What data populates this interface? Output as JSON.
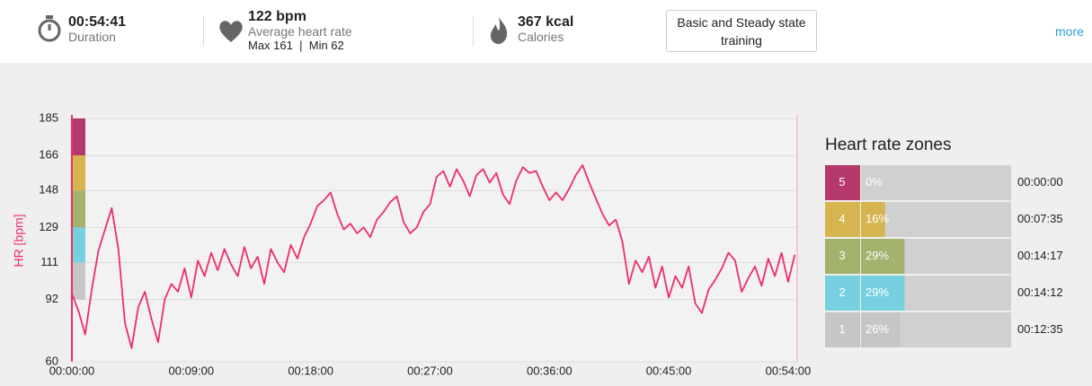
{
  "header": {
    "stats": [
      {
        "value": "00:54:41",
        "label": "Duration"
      },
      {
        "value": "122 bpm",
        "label": "Average heart rate",
        "max": "Max 161",
        "separator": "|",
        "min": "Min 62"
      },
      {
        "value": "367 kcal",
        "label": "Calories"
      }
    ],
    "button": "Basic and Steady state training",
    "more": "more"
  },
  "chart_data": {
    "type": "line",
    "y_label": "HR [bpm]",
    "color": "#ec2f66",
    "x": [
      0,
      30,
      60,
      90,
      120,
      150,
      180,
      210,
      240,
      270,
      300,
      330,
      360,
      390,
      420,
      450,
      480,
      510,
      540,
      570,
      600,
      630,
      660,
      690,
      720,
      750,
      780,
      810,
      840,
      870,
      900,
      930,
      960,
      990,
      1020,
      1050,
      1080,
      1110,
      1140,
      1170,
      1200,
      1230,
      1260,
      1290,
      1320,
      1350,
      1380,
      1410,
      1440,
      1470,
      1500,
      1530,
      1560,
      1590,
      1620,
      1650,
      1680,
      1710,
      1740,
      1770,
      1800,
      1830,
      1860,
      1890,
      1920,
      1950,
      1980,
      2010,
      2040,
      2070,
      2100,
      2130,
      2160,
      2190,
      2220,
      2250,
      2280,
      2310,
      2340,
      2370,
      2400,
      2430,
      2460,
      2490,
      2520,
      2550,
      2580,
      2610,
      2640,
      2670,
      2700,
      2730,
      2760,
      2790,
      2820,
      2850,
      2880,
      2910,
      2940,
      2970,
      3000,
      3030,
      3060,
      3090,
      3120,
      3150,
      3180,
      3210,
      3240,
      3270
    ],
    "values": [
      95,
      86,
      74,
      97,
      117,
      128,
      139,
      118,
      80,
      67,
      88,
      96,
      82,
      70,
      92,
      100,
      96,
      108,
      93,
      112,
      104,
      116,
      107,
      118,
      110,
      104,
      119,
      108,
      114,
      100,
      118,
      111,
      106,
      120,
      113,
      124,
      131,
      140,
      143,
      147,
      136,
      128,
      131,
      126,
      129,
      124,
      133,
      137,
      142,
      145,
      132,
      126,
      129,
      137,
      141,
      155,
      158,
      150,
      159,
      153,
      145,
      156,
      159,
      152,
      157,
      146,
      141,
      153,
      160,
      157,
      158,
      150,
      143,
      147,
      143,
      149,
      156,
      161,
      152,
      144,
      136,
      130,
      133,
      122,
      100,
      112,
      106,
      114,
      98,
      109,
      93,
      104,
      98,
      109,
      90,
      85,
      97,
      102,
      108,
      116,
      112,
      96,
      103,
      109,
      99,
      113,
      104,
      116,
      101,
      115
    ],
    "xlim": [
      0,
      3281
    ],
    "xticks": [
      {
        "value": 0,
        "label": "00:00:00"
      },
      {
        "value": 540,
        "label": "00:09:00"
      },
      {
        "value": 1080,
        "label": "00:18:00"
      },
      {
        "value": 1620,
        "label": "00:27:00"
      },
      {
        "value": 2160,
        "label": "00:36:00"
      },
      {
        "value": 2700,
        "label": "00:45:00"
      },
      {
        "value": 3240,
        "label": "00:54:00"
      }
    ],
    "ylim": [
      60,
      185
    ],
    "yticks": [
      60,
      92,
      111,
      129,
      148,
      166,
      185
    ],
    "grid": true,
    "zone_bands": [
      {
        "from": 166,
        "to": 185,
        "color": "#b4386a"
      },
      {
        "from": 148,
        "to": 166,
        "color": "#d6b550"
      },
      {
        "from": 129,
        "to": 148,
        "color": "#a3b26c"
      },
      {
        "from": 111,
        "to": 129,
        "color": "#76d0df"
      },
      {
        "from": 92,
        "to": 111,
        "color": "#c6c6c6"
      }
    ]
  },
  "zones_panel": {
    "title": "Heart rate zones",
    "rows": [
      {
        "zone": "5",
        "percent": 0,
        "percent_label": "0%",
        "time": "00:00:00",
        "color": "#b4386a"
      },
      {
        "zone": "4",
        "percent": 16,
        "percent_label": "16%",
        "time": "00:07:35",
        "color": "#d6b550"
      },
      {
        "zone": "3",
        "percent": 29,
        "percent_label": "29%",
        "time": "00:14:17",
        "color": "#a3b26c"
      },
      {
        "zone": "2",
        "percent": 29,
        "percent_label": "29%",
        "time": "00:14:12",
        "color": "#76d0df"
      },
      {
        "zone": "1",
        "percent": 26,
        "percent_label": "26%",
        "time": "00:12:35",
        "color": "#c6c6c6"
      }
    ]
  }
}
